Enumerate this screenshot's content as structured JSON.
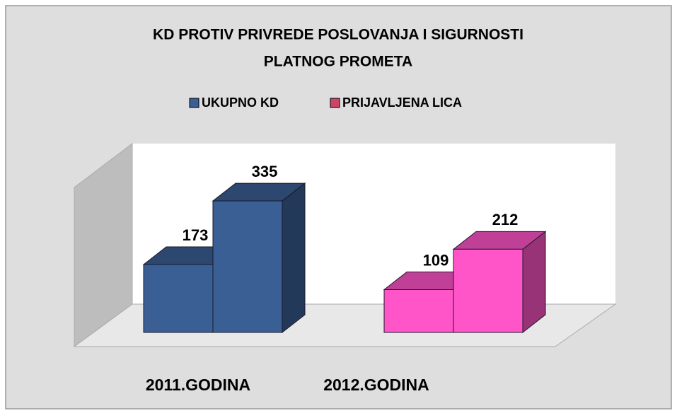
{
  "chart_data": {
    "type": "bar3d",
    "title_lines": [
      "KD PROTIV PRIVREDE POSLOVANJA I SIGURNOSTI",
      "PLATNOG PROMETA"
    ],
    "categories": [
      "2011.GODINA",
      "2012.GODINA"
    ],
    "series": [
      {
        "name": "UKUPNO KD",
        "color": "#3a5f95",
        "values": [
          173,
          109
        ]
      },
      {
        "name": "PRIJAVLJENA LICA",
        "color": "#cc4466",
        "values": [
          335,
          212
        ]
      }
    ],
    "category_colors": [
      "#3a5f95",
      "#ff55c8"
    ],
    "ylim": [
      0,
      400
    ]
  }
}
